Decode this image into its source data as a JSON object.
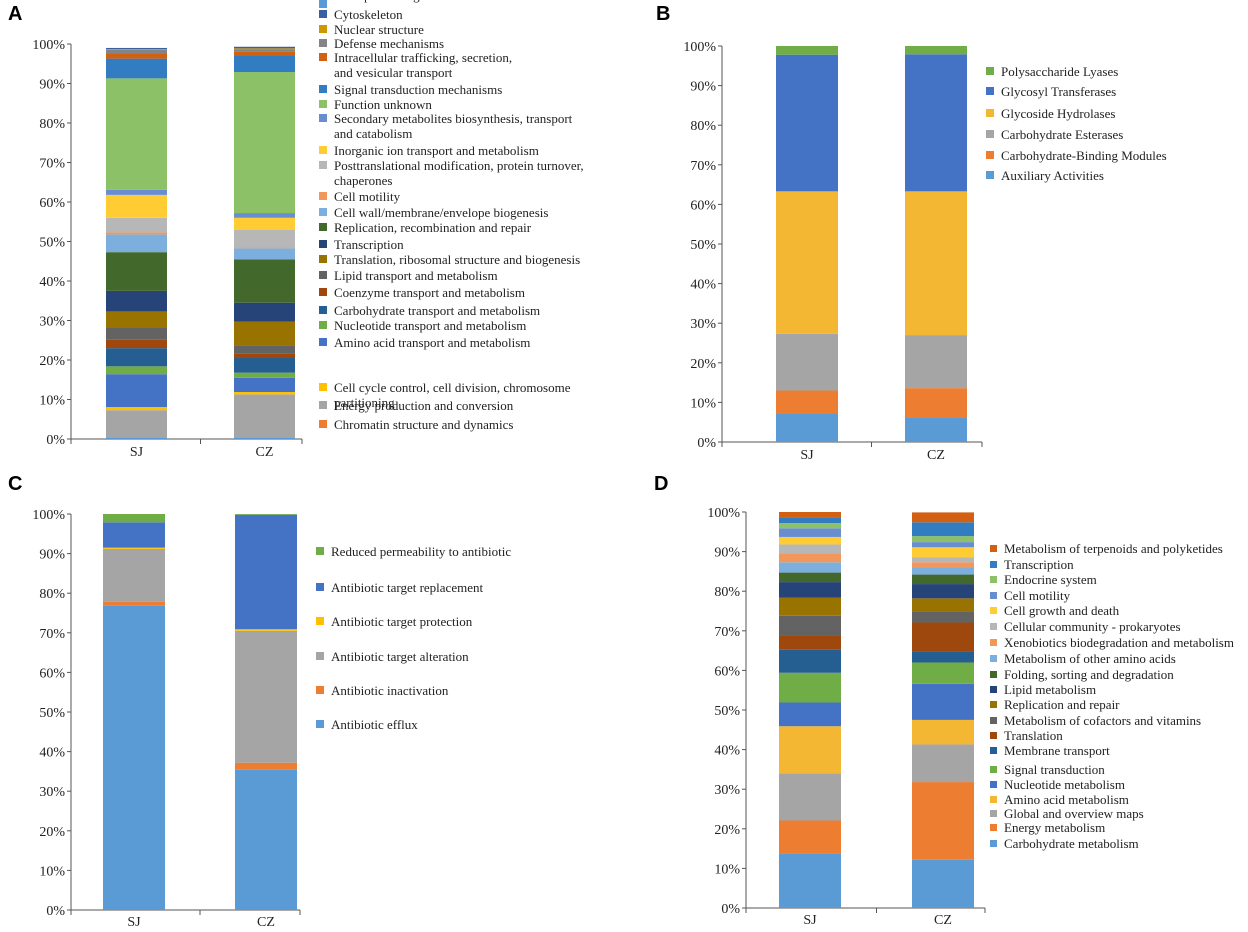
{
  "figure": {
    "panels": [
      "A",
      "B",
      "C",
      "D"
    ]
  },
  "chart_data": [
    {
      "panel": "A",
      "type": "bar",
      "stacked": true,
      "categories": [
        "SJ",
        "CZ"
      ],
      "yticks": [
        "0%",
        "10%",
        "20%",
        "30%",
        "40%",
        "50%",
        "60%",
        "70%",
        "80%",
        "90%",
        "100%"
      ],
      "ylim": [
        0,
        100
      ],
      "series": [
        {
          "name": "RNA processing and modification",
          "color": "#5b9bd5",
          "values": [
            0.3,
            0.3
          ]
        },
        {
          "name": "Chromatin structure and dynamics",
          "color": "#ed7d31",
          "values": [
            0.2,
            0.2
          ]
        },
        {
          "name": "Energy production and conversion",
          "color": "#a5a5a5",
          "values": [
            6.8,
            10.8
          ]
        },
        {
          "name": "Cell cycle control, cell division, chromosome partitioning",
          "color": "#ffc000",
          "values": [
            0.8,
            0.6
          ]
        },
        {
          "name": "Amino acid transport and metabolism",
          "color": "#4472c4",
          "values": [
            8.3,
            3.6
          ]
        },
        {
          "name": "Nucleotide transport and metabolism",
          "color": "#70ad47",
          "values": [
            2.0,
            1.3
          ]
        },
        {
          "name": "Carbohydrate transport and metabolism",
          "color": "#255e91",
          "values": [
            4.6,
            3.7
          ]
        },
        {
          "name": "Coenzyme transport and metabolism",
          "color": "#9e480e",
          "values": [
            2.1,
            1.2
          ]
        },
        {
          "name": "Lipid transport and metabolism",
          "color": "#636363",
          "values": [
            3.0,
            2.0
          ]
        },
        {
          "name": "Translation, ribosomal structure and biogenesis",
          "color": "#997300",
          "values": [
            4.2,
            6.0
          ]
        },
        {
          "name": "Transcription",
          "color": "#264478",
          "values": [
            5.2,
            4.8
          ]
        },
        {
          "name": "Replication, recombination and repair",
          "color": "#43682b",
          "values": [
            9.8,
            11.0
          ]
        },
        {
          "name": "Cell wall/membrane/envelope biogenesis",
          "color": "#7cafdd",
          "values": [
            4.5,
            2.8
          ]
        },
        {
          "name": "Cell motility",
          "color": "#f1975a",
          "values": [
            0.5,
            0.2
          ]
        },
        {
          "name": "Posttranslational modification, protein turnover, chaperones",
          "color": "#b7b7b7",
          "values": [
            3.7,
            4.5
          ]
        },
        {
          "name": "Inorganic ion transport and metabolism",
          "color": "#ffcd33",
          "values": [
            5.8,
            3.0
          ]
        },
        {
          "name": "Secondary metabolites biosynthesis, transport and catabolism",
          "color": "#698ed0",
          "values": [
            1.3,
            1.2
          ]
        },
        {
          "name": "Function unknown",
          "color": "#8cc168",
          "values": [
            28.2,
            35.7
          ]
        },
        {
          "name": "Signal transduction mechanisms",
          "color": "#327dc2",
          "values": [
            5.0,
            4.2
          ]
        },
        {
          "name": "Intracellular trafficking, secretion, and vesicular transport",
          "color": "#d26012",
          "values": [
            1.4,
            0.9
          ]
        },
        {
          "name": "Defense mechanisms",
          "color": "#848484",
          "values": [
            0.8,
            0.7
          ]
        },
        {
          "name": "Nuclear structure",
          "color": "#cc9a00",
          "values": [
            0.2,
            0.2
          ]
        },
        {
          "name": "Cytoskeleton",
          "color": "#3a5f9e",
          "values": [
            0.3,
            0.4
          ]
        }
      ]
    },
    {
      "panel": "B",
      "type": "bar",
      "stacked": true,
      "categories": [
        "SJ",
        "CZ"
      ],
      "yticks": [
        "0%",
        "10%",
        "20%",
        "30%",
        "40%",
        "50%",
        "60%",
        "70%",
        "80%",
        "90%",
        "100%"
      ],
      "ylim": [
        0,
        100
      ],
      "series": [
        {
          "name": "Auxiliary Activities",
          "color": "#5b9bd5",
          "values": [
            7.3,
            6.2
          ]
        },
        {
          "name": "Carbohydrate-Binding Modules",
          "color": "#ed7d31",
          "values": [
            5.7,
            7.4
          ]
        },
        {
          "name": "Carbohydrate Esterases",
          "color": "#a5a5a5",
          "values": [
            14.3,
            13.4
          ]
        },
        {
          "name": "Glycoside Hydrolases",
          "color": "#f4b733",
          "values": [
            36.0,
            36.3
          ]
        },
        {
          "name": "Glycosyl Transferases",
          "color": "#4472c4",
          "values": [
            34.5,
            34.6
          ]
        },
        {
          "name": "Polysaccharide Lyases",
          "color": "#70ad47",
          "values": [
            2.2,
            2.1
          ]
        }
      ]
    },
    {
      "panel": "C",
      "type": "bar",
      "stacked": true,
      "categories": [
        "SJ",
        "CZ"
      ],
      "yticks": [
        "0%",
        "10%",
        "20%",
        "30%",
        "40%",
        "50%",
        "60%",
        "70%",
        "80%",
        "90%",
        "100%"
      ],
      "ylim": [
        0,
        100
      ],
      "series": [
        {
          "name": "Antibiotic efflux",
          "color": "#5b9bd5",
          "values": [
            76.8,
            35.4
          ]
        },
        {
          "name": "Antibiotic inactivation",
          "color": "#ed7d31",
          "values": [
            1.0,
            1.8
          ]
        },
        {
          "name": "Antibiotic target alteration",
          "color": "#a5a5a5",
          "values": [
            13.4,
            33.3
          ]
        },
        {
          "name": "Antibiotic target protection",
          "color": "#ffc000",
          "values": [
            0.3,
            0.4
          ]
        },
        {
          "name": "Antibiotic target replacement",
          "color": "#4472c4",
          "values": [
            6.4,
            28.9
          ]
        },
        {
          "name": "Reduced permeability to antibiotic",
          "color": "#70ad47",
          "values": [
            2.1,
            0.2
          ]
        }
      ]
    },
    {
      "panel": "D",
      "type": "bar",
      "stacked": true,
      "categories": [
        "SJ",
        "CZ"
      ],
      "yticks": [
        "0%",
        "10%",
        "20%",
        "30%",
        "40%",
        "50%",
        "60%",
        "70%",
        "80%",
        "90%",
        "100%"
      ],
      "ylim": [
        0,
        100
      ],
      "series": [
        {
          "name": "Carbohydrate metabolism",
          "color": "#5b9bd5",
          "values": [
            13.8,
            12.2
          ]
        },
        {
          "name": "Energy metabolism",
          "color": "#ed7d31",
          "values": [
            8.3,
            19.6
          ]
        },
        {
          "name": "Global and overview maps",
          "color": "#a5a5a5",
          "values": [
            11.9,
            9.5
          ]
        },
        {
          "name": "Amino acid metabolism",
          "color": "#f4b733",
          "values": [
            11.9,
            6.2
          ]
        },
        {
          "name": "Nucleotide metabolism",
          "color": "#4472c4",
          "values": [
            6.0,
            9.1
          ]
        },
        {
          "name": "Signal transduction",
          "color": "#70ad47",
          "values": [
            7.5,
            5.4
          ]
        },
        {
          "name": "Membrane transport",
          "color": "#255e91",
          "values": [
            5.8,
            2.8
          ]
        },
        {
          "name": "Translation",
          "color": "#9e480e",
          "values": [
            3.6,
            7.3
          ]
        },
        {
          "name": "Metabolism of cofactors and vitamins",
          "color": "#636363",
          "values": [
            5.0,
            2.8
          ]
        },
        {
          "name": "Replication and repair",
          "color": "#997300",
          "values": [
            4.6,
            3.3
          ]
        },
        {
          "name": "Lipid metabolism",
          "color": "#264478",
          "values": [
            3.9,
            3.6
          ]
        },
        {
          "name": "Folding, sorting and degradation",
          "color": "#43682b",
          "values": [
            2.4,
            2.4
          ]
        },
        {
          "name": "Metabolism of other amino acids",
          "color": "#7cafdd",
          "values": [
            2.6,
            1.8
          ]
        },
        {
          "name": "Xenobiotics biodegradation and metabolism",
          "color": "#f1975a",
          "values": [
            2.3,
            1.3
          ]
        },
        {
          "name": "Cellular community - prokaryotes",
          "color": "#b7b7b7",
          "values": [
            2.2,
            1.3
          ]
        },
        {
          "name": "Cell growth and death",
          "color": "#ffcd33",
          "values": [
            1.9,
            2.5
          ]
        },
        {
          "name": "Cell motility",
          "color": "#698ed0",
          "values": [
            2.2,
            1.3
          ]
        },
        {
          "name": "Endocrine system",
          "color": "#8cc168",
          "values": [
            1.3,
            1.5
          ]
        },
        {
          "name": "Transcription",
          "color": "#327dc2",
          "values": [
            1.5,
            3.5
          ]
        },
        {
          "name": "Metabolism of terpenoids and polyketides",
          "color": "#d26012",
          "values": [
            1.3,
            2.5
          ]
        }
      ]
    }
  ]
}
